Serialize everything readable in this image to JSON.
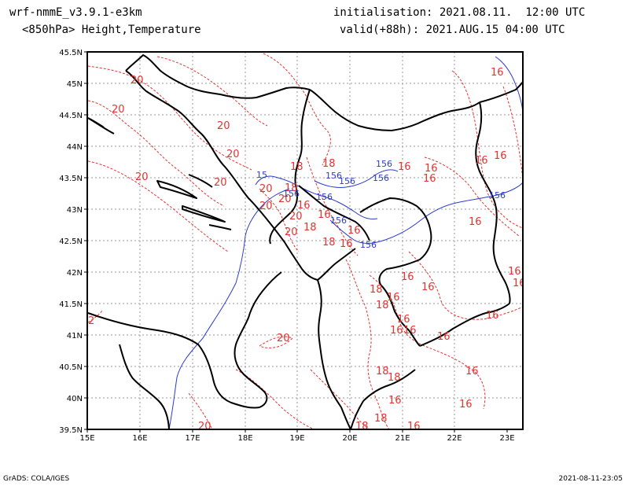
{
  "header": {
    "model": "wrf-nmmE_v3.9.1-e3km",
    "product": "<850hPa> Height,Temperature",
    "init": "initialisation: 2021.08.11.  12:00 UTC",
    "valid": "valid(+88h): 2021.AUG.15 04:00 UTC"
  },
  "footer": {
    "left": "GrADS: COLA/IGES",
    "right": "2021-08-11-23:05"
  },
  "map": {
    "lon_ticks": [
      "15E",
      "16E",
      "17E",
      "18E",
      "19E",
      "20E",
      "21E",
      "22E",
      "23E"
    ],
    "lat_ticks": [
      "45.5N",
      "45N",
      "44.5N",
      "44N",
      "43.5N",
      "43N",
      "42.5N",
      "42N",
      "41.5N",
      "41N",
      "40.5N",
      "40N",
      "39.5N"
    ],
    "temp_color": "#e8322e",
    "height_color": "#2b3bd1",
    "temp_labels": [
      "20",
      "20",
      "20",
      "20",
      "20",
      "20",
      "20",
      "20",
      "20",
      "20",
      "20",
      "20",
      "18",
      "18",
      "18",
      "18",
      "18",
      "18",
      "18",
      "18",
      "18",
      "18",
      "18",
      "16",
      "16",
      "16",
      "16",
      "16",
      "16",
      "16",
      "16",
      "16",
      "16",
      "16",
      "16",
      "16",
      "16",
      "16",
      "16",
      "16",
      "16",
      "16",
      "16",
      "16",
      "16",
      "16",
      "16",
      "16",
      "2",
      "20"
    ],
    "height_labels": [
      "156",
      "156",
      "156",
      "156",
      "156",
      "156",
      "156",
      "156",
      "156",
      "15"
    ]
  }
}
